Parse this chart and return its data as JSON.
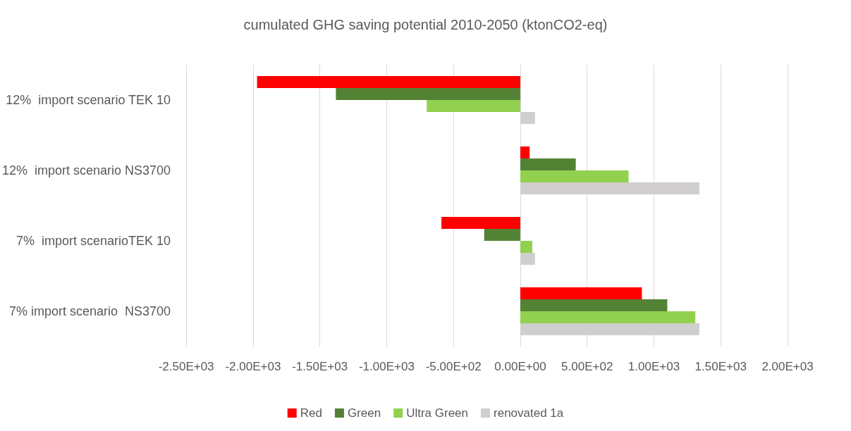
{
  "chart_data": {
    "type": "bar",
    "orientation": "horizontal",
    "title": "cumulated GHG saving potential 2010-2050 (ktonCO2-eq)",
    "categories": [
      "12%  import scenario TEK 10",
      "12%  import scenario NS3700",
      "7%  import scenarioTEK 10",
      "7% import scenario  NS3700"
    ],
    "series": [
      {
        "name": "Red",
        "color": "#ff0000",
        "values": [
          -1970,
          70,
          -590,
          910
        ]
      },
      {
        "name": "Green",
        "color": "#548235",
        "values": [
          -1380,
          415,
          -270,
          1100
        ]
      },
      {
        "name": "Ultra Green",
        "color": "#92d050",
        "values": [
          -700,
          810,
          90,
          1310
        ]
      },
      {
        "name": "renovated 1a",
        "color": "#d0cece",
        "values": [
          110,
          1340,
          110,
          1340
        ]
      }
    ],
    "xlim": [
      -2500,
      2000
    ],
    "xticks": [
      {
        "value": -2500,
        "label": "-2.50E+03"
      },
      {
        "value": -2000,
        "label": "-2.00E+03"
      },
      {
        "value": -1500,
        "label": "-1.50E+03"
      },
      {
        "value": -1000,
        "label": "-1.00E+03"
      },
      {
        "value": -500,
        "label": "-5.00E+02"
      },
      {
        "value": 0,
        "label": "0.00E+00"
      },
      {
        "value": 500,
        "label": "5.00E+02"
      },
      {
        "value": 1000,
        "label": "1.00E+03"
      },
      {
        "value": 1500,
        "label": "1.50E+03"
      },
      {
        "value": 2000,
        "label": "2.00E+03"
      }
    ],
    "grid": "x",
    "legend": "bottom"
  }
}
